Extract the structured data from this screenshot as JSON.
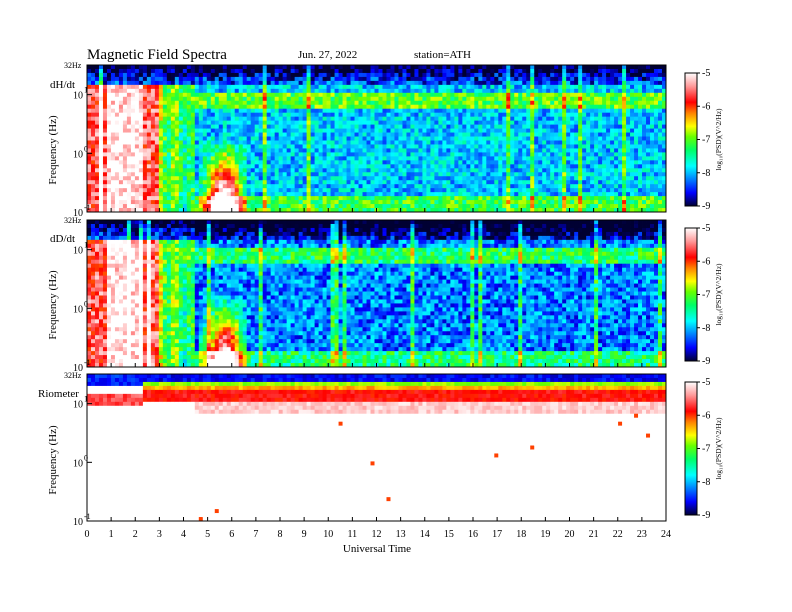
{
  "header": {
    "title": "Magnetic  Field  Spectra",
    "date": "Jun. 27, 2022",
    "station": "station=ATH"
  },
  "colors": {
    "colormap": [
      "#000033",
      "#0000ff",
      "#00a0ff",
      "#00ffff",
      "#00ff66",
      "#66ff00",
      "#ffff00",
      "#ff8000",
      "#ff0000",
      "#ff9999",
      "#ffffff"
    ]
  },
  "chart_data": [
    {
      "type": "heatmap",
      "panel_label": "dH/dt",
      "ylabel": "Frequency  (Hz)",
      "top_label": "32Hz",
      "yscale": "log",
      "ylim": [
        0.1,
        32
      ],
      "y_ticks": [
        {
          "value": 0.1,
          "label": "10"
        },
        {
          "value": 1,
          "label": "10"
        },
        {
          "value": 10,
          "label": "10"
        }
      ],
      "y_tick_exponents": [
        "-1",
        "0",
        "1"
      ],
      "xlim": [
        0,
        24
      ],
      "colorbar": {
        "label": "log10(PSD)(V^2/Hz)",
        "display_label": "log₁₀(PSD)(V^2/Hz)",
        "range": [
          -9,
          -5
        ],
        "ticks": [
          "-5",
          "-6",
          "-7",
          "-8",
          "-9"
        ]
      },
      "description_levels": {
        "background_0_3h": -6.0,
        "background_5_24h": -8.0,
        "band_10Hz": -7.0
      }
    },
    {
      "type": "heatmap",
      "panel_label": "dD/dt",
      "ylabel": "Frequency  (Hz)",
      "top_label": "32Hz",
      "yscale": "log",
      "ylim": [
        0.1,
        32
      ],
      "y_ticks": [
        {
          "value": 0.1,
          "label": "10"
        },
        {
          "value": 1,
          "label": "10"
        },
        {
          "value": 10,
          "label": "10"
        }
      ],
      "y_tick_exponents": [
        "-1",
        "0",
        "1"
      ],
      "xlim": [
        0,
        24
      ],
      "colorbar": {
        "label": "log10(PSD)(V^2/Hz)",
        "display_label": "log₁₀(PSD)(V^2/Hz)",
        "range": [
          -9,
          -5
        ],
        "ticks": [
          "-5",
          "-6",
          "-7",
          "-8",
          "-9"
        ]
      },
      "description_levels": {
        "background_0_3h": -5.8,
        "background_5_24h": -8.2,
        "band_10Hz": -7.0
      }
    },
    {
      "type": "heatmap",
      "panel_label": "Riometer",
      "ylabel": "Frequency  (Hz)",
      "top_label": "32Hz",
      "yscale": "log",
      "ylim": [
        0.1,
        32
      ],
      "y_ticks": [
        {
          "value": 0.1,
          "label": "10"
        },
        {
          "value": 1,
          "label": "10"
        },
        {
          "value": 10,
          "label": "10"
        }
      ],
      "y_tick_exponents": [
        "-1",
        "0",
        "1"
      ],
      "xlim": [
        0,
        24
      ],
      "colorbar": {
        "label": "log10(PSD)(V^2/Hz)",
        "display_label": "log₁₀(PSD)(V^2/Hz)",
        "range": [
          -9,
          -5
        ],
        "ticks": [
          "-5",
          "-6",
          "-7",
          "-8",
          "-9"
        ]
      },
      "description_levels": {
        "low_freq_level": -5.0,
        "high_freq_level": -8.5
      }
    }
  ],
  "xaxis": {
    "label": "Universal Time",
    "ticks": [
      "0",
      "1",
      "2",
      "3",
      "4",
      "5",
      "6",
      "7",
      "8",
      "9",
      "10",
      "11",
      "12",
      "13",
      "14",
      "15",
      "16",
      "17",
      "18",
      "19",
      "20",
      "21",
      "22",
      "23",
      "24"
    ]
  }
}
